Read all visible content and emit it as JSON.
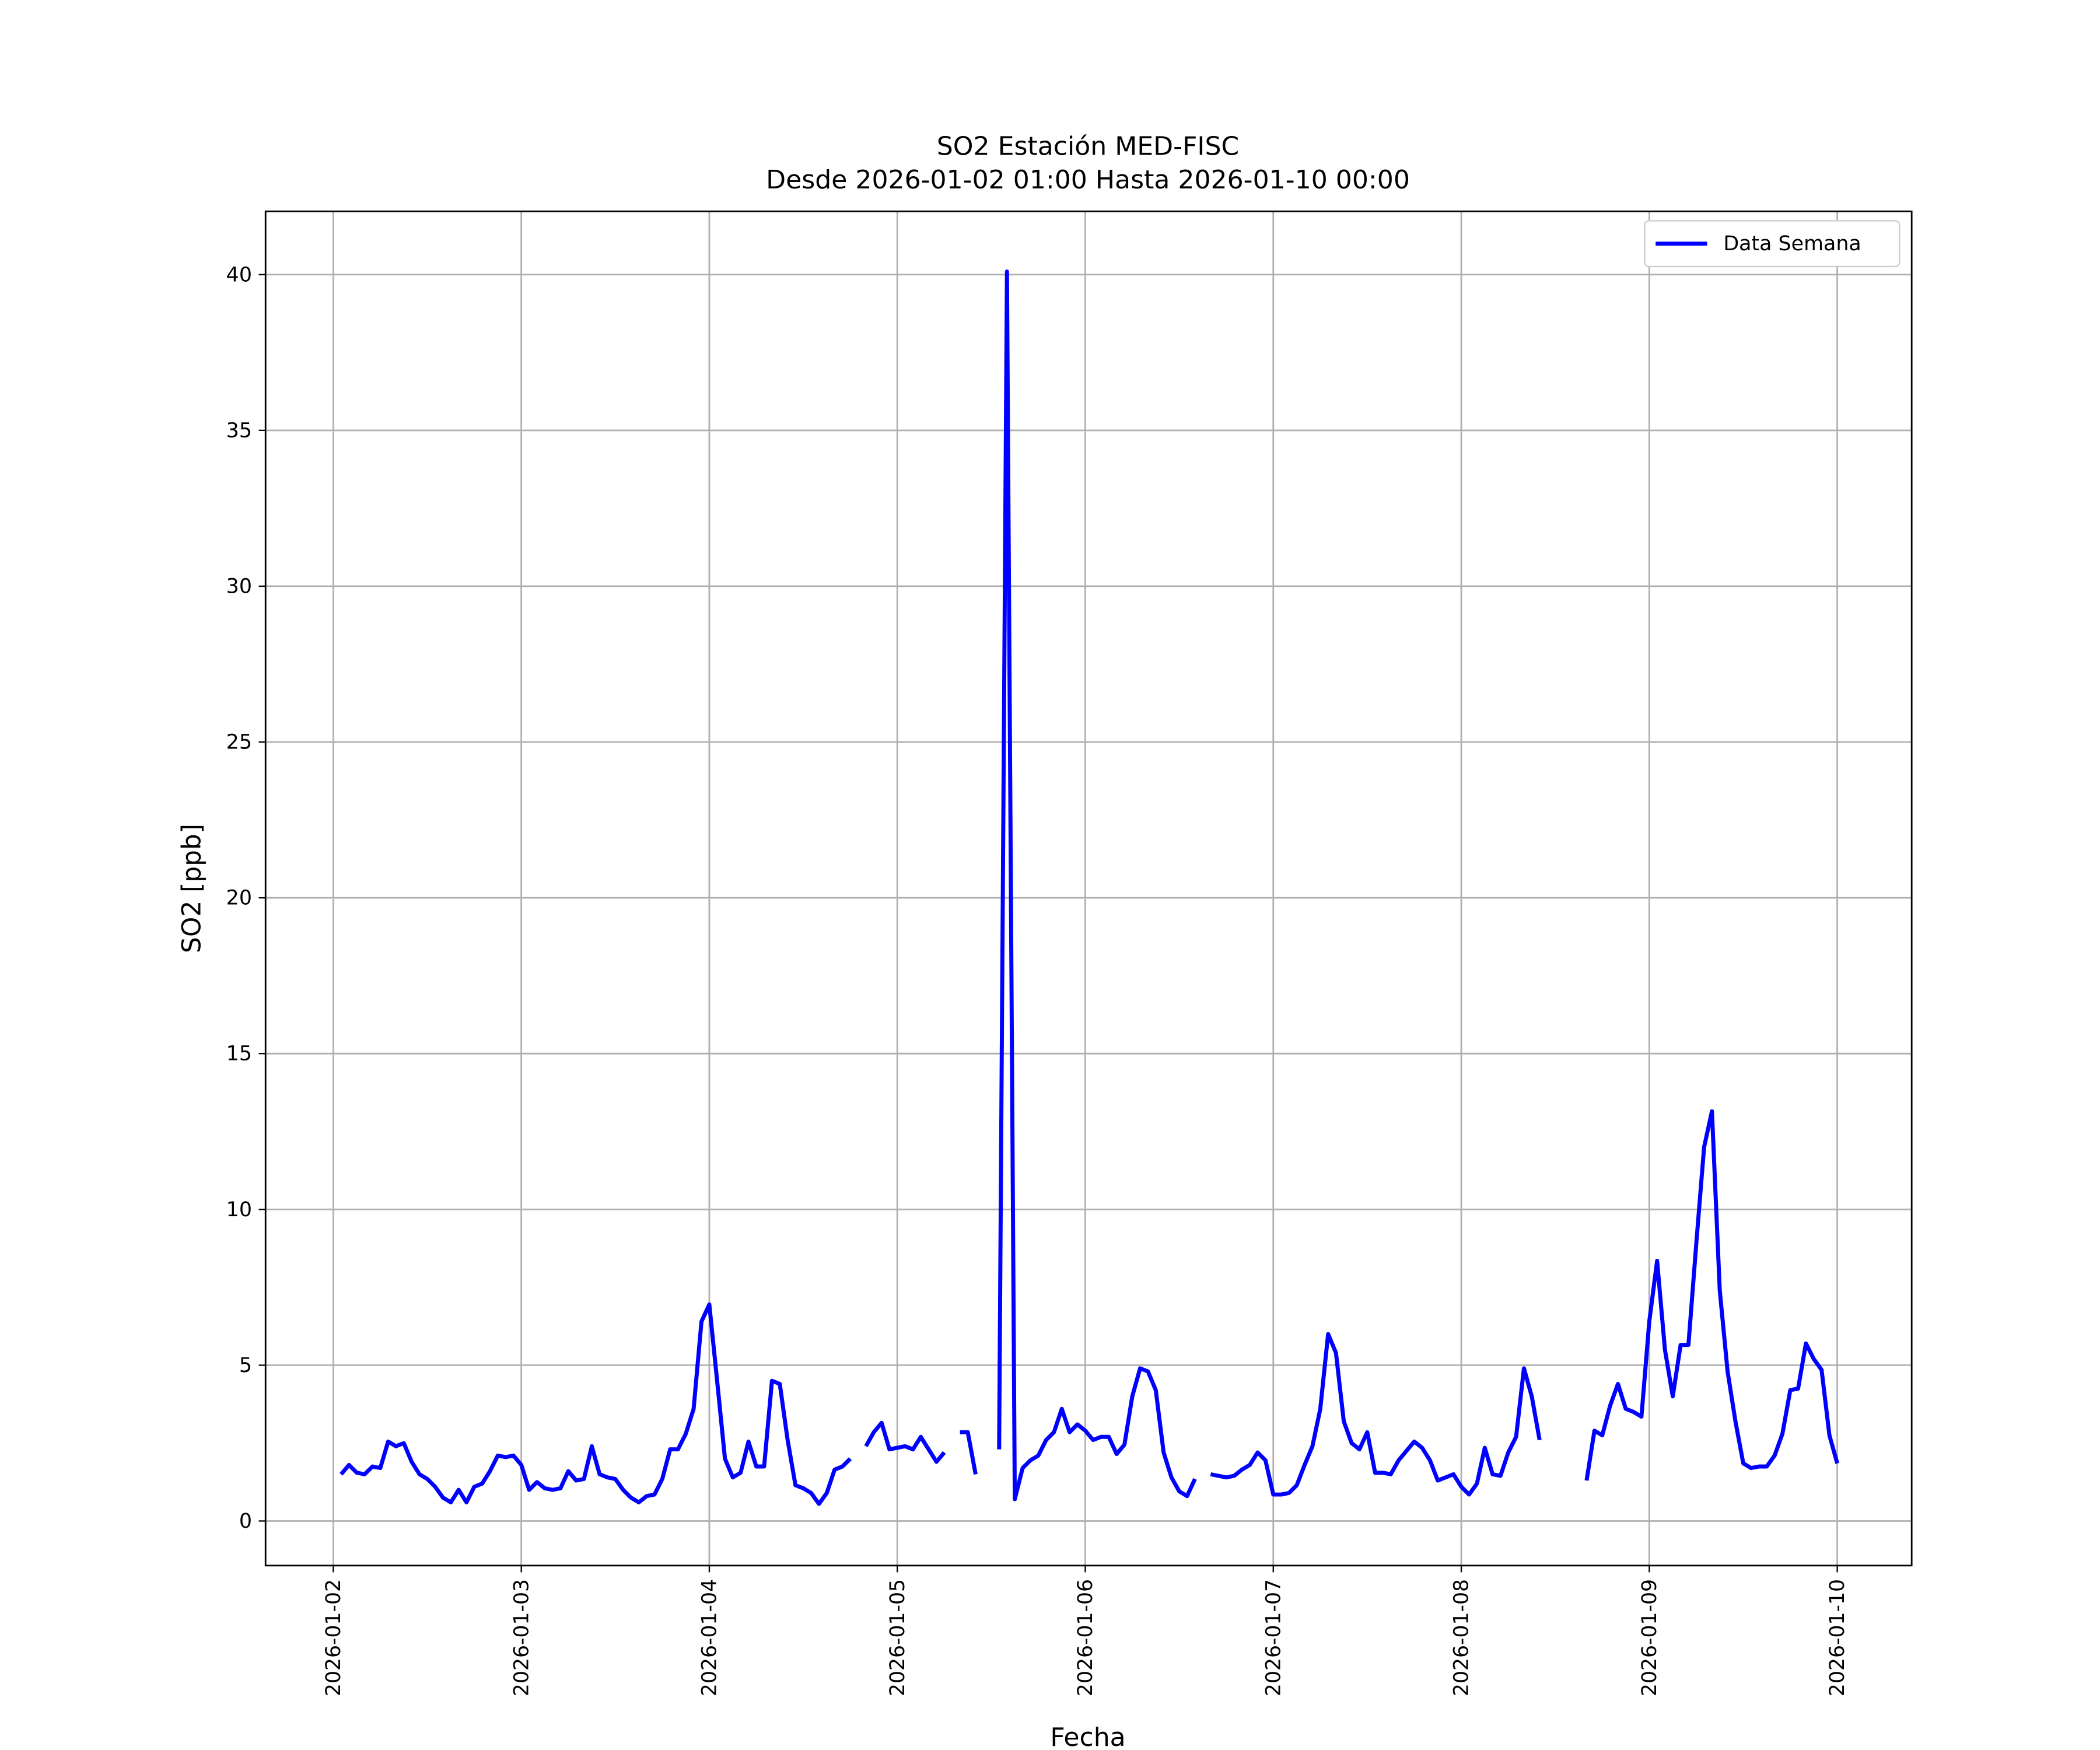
{
  "chart_data": {
    "type": "line",
    "title": "SO2 Estación MED-FISC",
    "subtitle": "Desde 2026-01-02 01:00 Hasta 2026-01-10 00:00",
    "x_label": "Fecha",
    "y_label": "SO2 [ppb]",
    "legend": "upper right",
    "grid": true,
    "xlim": [
      "2026-01-01 15:21",
      "2026-01-10 09:30"
    ],
    "xticks": [
      "2026-01-02",
      "2026-01-03",
      "2026-01-04",
      "2026-01-05",
      "2026-01-06",
      "2026-01-07",
      "2026-01-08",
      "2026-01-09",
      "2026-01-10"
    ],
    "ylim": [
      -1.43,
      42.03
    ],
    "yticks": [
      0,
      5,
      10,
      15,
      20,
      25,
      30,
      35,
      40
    ],
    "x": [
      "2026-01-02 01:00",
      "2026-01-02 02:00",
      "2026-01-02 03:00",
      "2026-01-02 04:00",
      "2026-01-02 05:00",
      "2026-01-02 06:00",
      "2026-01-02 07:00",
      "2026-01-02 08:00",
      "2026-01-02 09:00",
      "2026-01-02 10:00",
      "2026-01-02 11:00",
      "2026-01-02 12:00",
      "2026-01-02 13:00",
      "2026-01-02 14:00",
      "2026-01-02 15:00",
      "2026-01-02 16:00",
      "2026-01-02 17:00",
      "2026-01-02 18:00",
      "2026-01-02 19:00",
      "2026-01-02 20:00",
      "2026-01-02 21:00",
      "2026-01-02 22:00",
      "2026-01-02 23:00",
      "2026-01-03 00:00",
      "2026-01-03 01:00",
      "2026-01-03 02:00",
      "2026-01-03 03:00",
      "2026-01-03 04:00",
      "2026-01-03 05:00",
      "2026-01-03 06:00",
      "2026-01-03 07:00",
      "2026-01-03 08:00",
      "2026-01-03 09:00",
      "2026-01-03 10:00",
      "2026-01-03 11:00",
      "2026-01-03 12:00",
      "2026-01-03 13:00",
      "2026-01-03 14:00",
      "2026-01-03 15:00",
      "2026-01-03 16:00",
      "2026-01-03 17:00",
      "2026-01-03 18:00",
      "2026-01-03 19:00",
      "2026-01-03 20:00",
      "2026-01-03 21:00",
      "2026-01-03 22:00",
      "2026-01-03 23:00",
      "2026-01-04 00:00",
      "2026-01-04 01:00",
      "2026-01-04 02:00",
      "2026-01-04 03:00",
      "2026-01-04 04:00",
      "2026-01-04 05:00",
      "2026-01-04 06:00",
      "2026-01-04 07:00",
      "2026-01-04 08:00",
      "2026-01-04 09:00",
      "2026-01-04 10:00",
      "2026-01-04 11:00",
      "2026-01-04 12:00",
      "2026-01-04 13:00",
      "2026-01-04 14:00",
      "2026-01-04 15:00",
      "2026-01-04 16:00",
      "2026-01-04 17:00",
      "2026-01-04 18:00",
      "2026-01-04 19:00",
      "2026-01-04 20:00",
      "2026-01-04 21:00",
      "2026-01-04 22:00",
      "2026-01-04 23:00",
      "2026-01-05 00:00",
      "2026-01-05 01:00",
      "2026-01-05 02:00",
      "2026-01-05 03:00",
      "2026-01-05 04:00",
      "2026-01-05 05:00",
      "2026-01-05 06:00",
      "2026-01-05 07:00",
      "2026-01-05 08:00",
      "2026-01-05 09:00",
      "2026-01-05 10:00",
      "2026-01-05 11:00",
      "2026-01-05 12:00",
      "2026-01-05 13:00",
      "2026-01-05 14:00",
      "2026-01-05 15:00",
      "2026-01-05 16:00",
      "2026-01-05 17:00",
      "2026-01-05 18:00",
      "2026-01-05 19:00",
      "2026-01-05 20:00",
      "2026-01-05 21:00",
      "2026-01-05 22:00",
      "2026-01-05 23:00",
      "2026-01-06 00:00",
      "2026-01-06 01:00",
      "2026-01-06 02:00",
      "2026-01-06 03:00",
      "2026-01-06 04:00",
      "2026-01-06 05:00",
      "2026-01-06 06:00",
      "2026-01-06 07:00",
      "2026-01-06 08:00",
      "2026-01-06 09:00",
      "2026-01-06 10:00",
      "2026-01-06 11:00",
      "2026-01-06 12:00",
      "2026-01-06 13:00",
      "2026-01-06 14:00",
      "2026-01-06 15:00",
      "2026-01-06 16:00",
      "2026-01-06 17:00",
      "2026-01-06 18:00",
      "2026-01-06 19:00",
      "2026-01-06 20:00",
      "2026-01-06 21:00",
      "2026-01-06 22:00",
      "2026-01-06 23:00",
      "2026-01-07 00:00",
      "2026-01-07 01:00",
      "2026-01-07 02:00",
      "2026-01-07 03:00",
      "2026-01-07 04:00",
      "2026-01-07 05:00",
      "2026-01-07 06:00",
      "2026-01-07 07:00",
      "2026-01-07 08:00",
      "2026-01-07 09:00",
      "2026-01-07 10:00",
      "2026-01-07 11:00",
      "2026-01-07 12:00",
      "2026-01-07 13:00",
      "2026-01-07 14:00",
      "2026-01-07 15:00",
      "2026-01-07 16:00",
      "2026-01-07 17:00",
      "2026-01-07 18:00",
      "2026-01-07 19:00",
      "2026-01-07 20:00",
      "2026-01-07 21:00",
      "2026-01-07 22:00",
      "2026-01-07 23:00",
      "2026-01-08 00:00",
      "2026-01-08 01:00",
      "2026-01-08 02:00",
      "2026-01-08 03:00",
      "2026-01-08 04:00",
      "2026-01-08 05:00",
      "2026-01-08 06:00",
      "2026-01-08 07:00",
      "2026-01-08 08:00",
      "2026-01-08 09:00",
      "2026-01-08 10:00",
      "2026-01-08 11:00",
      "2026-01-08 12:00",
      "2026-01-08 13:00",
      "2026-01-08 14:00",
      "2026-01-08 15:00",
      "2026-01-08 16:00",
      "2026-01-08 17:00",
      "2026-01-08 18:00",
      "2026-01-08 19:00",
      "2026-01-08 20:00",
      "2026-01-08 21:00",
      "2026-01-08 22:00",
      "2026-01-08 23:00",
      "2026-01-09 00:00",
      "2026-01-09 01:00",
      "2026-01-09 02:00",
      "2026-01-09 03:00",
      "2026-01-09 04:00",
      "2026-01-09 05:00",
      "2026-01-09 06:00",
      "2026-01-09 07:00",
      "2026-01-09 08:00",
      "2026-01-09 09:00",
      "2026-01-09 10:00",
      "2026-01-09 11:00",
      "2026-01-09 12:00",
      "2026-01-09 13:00",
      "2026-01-09 14:00",
      "2026-01-09 15:00",
      "2026-01-09 16:00",
      "2026-01-09 17:00",
      "2026-01-09 18:00",
      "2026-01-09 19:00",
      "2026-01-09 20:00",
      "2026-01-09 21:00",
      "2026-01-09 22:00",
      "2026-01-09 23:00",
      "2026-01-10 00:00"
    ],
    "series": [
      {
        "name": "Data Semana",
        "color": "#0000ff",
        "values": [
          1.5,
          1.8,
          1.55,
          1.5,
          1.75,
          1.7,
          2.55,
          2.4,
          2.5,
          1.9,
          1.5,
          1.35,
          1.1,
          0.75,
          0.6,
          1.0,
          0.6,
          1.1,
          1.2,
          1.6,
          2.1,
          2.05,
          2.1,
          1.8,
          1.0,
          1.25,
          1.05,
          1.0,
          1.05,
          1.6,
          1.3,
          1.35,
          2.4,
          1.5,
          1.4,
          1.35,
          1.0,
          0.75,
          0.6,
          0.8,
          0.85,
          1.35,
          2.3,
          2.3,
          2.8,
          3.6,
          6.4,
          6.95,
          4.5,
          2.0,
          1.4,
          1.55,
          2.55,
          1.75,
          1.75,
          4.5,
          4.4,
          2.6,
          1.15,
          1.05,
          0.9,
          0.55,
          0.9,
          1.65,
          1.75,
          2.0,
          null,
          2.4,
          2.85,
          3.15,
          2.3,
          2.35,
          2.4,
          2.3,
          2.7,
          2.3,
          1.9,
          2.2,
          null,
          2.85,
          2.85,
          1.5,
          null,
          null,
          2.3,
          40.1,
          0.7,
          1.7,
          1.95,
          2.1,
          2.6,
          2.85,
          3.6,
          2.85,
          3.1,
          2.9,
          2.6,
          2.7,
          2.7,
          2.15,
          2.45,
          4.0,
          4.9,
          4.8,
          4.2,
          2.2,
          1.4,
          0.95,
          0.8,
          1.35,
          null,
          1.5,
          1.45,
          1.4,
          1.45,
          1.65,
          1.8,
          2.2,
          1.95,
          0.85,
          0.85,
          0.9,
          1.15,
          1.8,
          2.4,
          3.6,
          6.0,
          5.4,
          3.2,
          2.5,
          2.3,
          2.85,
          1.55,
          1.55,
          1.5,
          1.95,
          2.25,
          2.55,
          2.35,
          1.95,
          1.3,
          1.4,
          1.5,
          1.1,
          0.85,
          1.2,
          2.35,
          1.5,
          1.45,
          2.2,
          2.7,
          4.9,
          4.0,
          2.6,
          null,
          null,
          null,
          null,
          null,
          1.3,
          2.9,
          2.75,
          3.7,
          4.4,
          3.6,
          3.5,
          3.35,
          6.4,
          8.35,
          5.5,
          4.0,
          5.65,
          5.65,
          8.9,
          12.0,
          13.15,
          7.4,
          4.8,
          3.2,
          1.85,
          1.7,
          1.75,
          1.75,
          2.1,
          2.8,
          4.2,
          4.25,
          5.7,
          5.2,
          4.85,
          2.75,
          1.85
        ]
      }
    ]
  }
}
